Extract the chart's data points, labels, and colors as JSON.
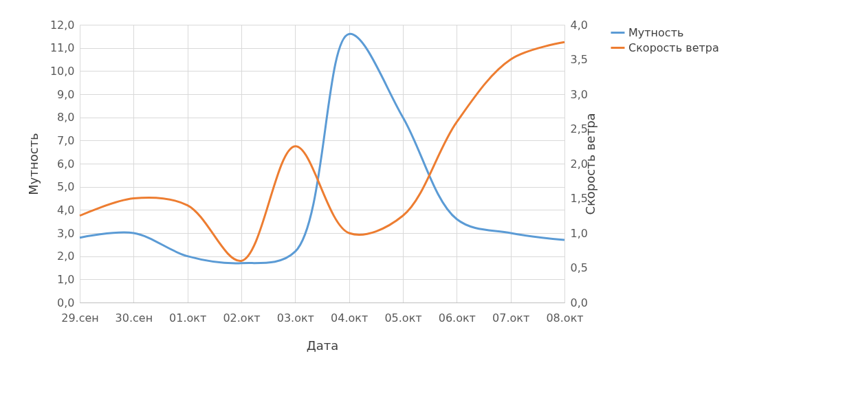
{
  "chart_data": {
    "type": "line",
    "xlabel": "Дата",
    "ylabel": "Мутность",
    "y2label": "Скорость ветра",
    "categories": [
      "29.сен",
      "30.сен",
      "01.окт",
      "02.окт",
      "03.окт",
      "04.окт",
      "05.окт",
      "06.окт",
      "07.окт",
      "08.окт"
    ],
    "series": [
      {
        "name": "Мутность",
        "color": "#5b9bd5",
        "values": [
          2.8,
          3.0,
          2.0,
          1.7,
          2.2,
          11.6,
          8.0,
          3.6,
          3.0,
          2.7
        ]
      },
      {
        "name": "Скорость ветра",
        "color": "#ed7d31",
        "axis": "y2",
        "values": [
          1.25,
          1.5,
          1.4,
          0.6,
          2.25,
          1.0,
          1.25,
          2.6,
          3.5,
          3.75
        ]
      }
    ],
    "ylim": [
      0,
      12
    ],
    "yticks": [
      {
        "value": 0,
        "label": "0,0"
      },
      {
        "value": 1,
        "label": "1,0"
      },
      {
        "value": 2,
        "label": "2,0"
      },
      {
        "value": 3,
        "label": "3,0"
      },
      {
        "value": 4,
        "label": "4,0"
      },
      {
        "value": 5,
        "label": "5,0"
      },
      {
        "value": 6,
        "label": "6,0"
      },
      {
        "value": 7,
        "label": "7,0"
      },
      {
        "value": 8,
        "label": "8,0"
      },
      {
        "value": 9,
        "label": "9,0"
      },
      {
        "value": 10,
        "label": "10,0"
      },
      {
        "value": 11,
        "label": "11,0"
      },
      {
        "value": 12,
        "label": "12,0"
      }
    ],
    "y2lim": [
      0,
      4
    ],
    "y2ticks": [
      {
        "value": 0,
        "label": "0,0"
      },
      {
        "value": 0.5,
        "label": "0,5"
      },
      {
        "value": 1,
        "label": "1,0"
      },
      {
        "value": 1.5,
        "label": "1,5"
      },
      {
        "value": 2,
        "label": "2,0"
      },
      {
        "value": 2.5,
        "label": "2,5"
      },
      {
        "value": 3,
        "label": "3,0"
      },
      {
        "value": 3.5,
        "label": "3,5"
      },
      {
        "value": 4,
        "label": "4,0"
      }
    ],
    "grid": true,
    "legend": "right",
    "marker": "none",
    "line_style": "solid"
  }
}
